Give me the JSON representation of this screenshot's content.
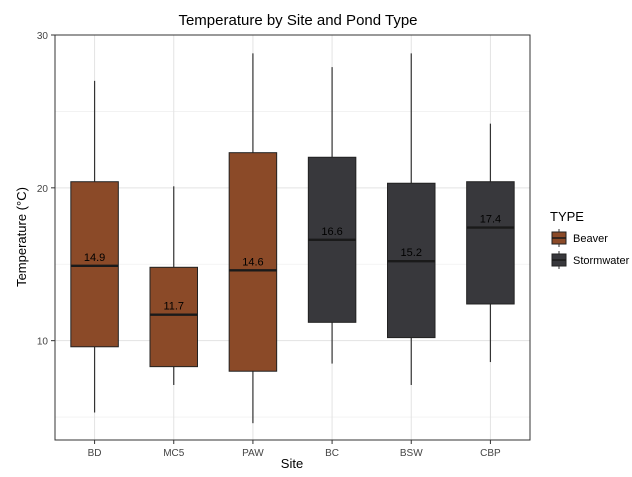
{
  "chart_data": {
    "type": "box",
    "title": "Temperature by Site and Pond Type",
    "xlabel": "Site",
    "ylabel": "Temperature (°C)",
    "ylim": [
      3.5,
      30
    ],
    "yticks": [
      10,
      20,
      30
    ],
    "grid": true,
    "legend": {
      "title": "TYPE",
      "position": "right",
      "entries": [
        {
          "name": "Beaver",
          "color": "#8b4a28"
        },
        {
          "name": "Stormwater",
          "color": "#38383c"
        }
      ]
    },
    "categories": [
      "BD",
      "MC5",
      "PAW",
      "BC",
      "BSW",
      "CBP"
    ],
    "boxes": [
      {
        "site": "BD",
        "type": "Beaver",
        "min": 5.3,
        "q1": 9.6,
        "median": 14.9,
        "q3": 20.4,
        "max": 27.0,
        "label": "14.9"
      },
      {
        "site": "MC5",
        "type": "Beaver",
        "min": 7.1,
        "q1": 8.3,
        "median": 11.7,
        "q3": 14.8,
        "max": 20.1,
        "label": "11.7"
      },
      {
        "site": "PAW",
        "type": "Beaver",
        "min": 4.6,
        "q1": 8.0,
        "median": 14.6,
        "q3": 22.3,
        "max": 28.8,
        "label": "14.6"
      },
      {
        "site": "BC",
        "type": "Stormwater",
        "min": 8.5,
        "q1": 11.2,
        "median": 16.6,
        "q3": 22.0,
        "max": 27.9,
        "label": "16.6"
      },
      {
        "site": "BSW",
        "type": "Stormwater",
        "min": 7.1,
        "q1": 10.2,
        "median": 15.2,
        "q3": 20.3,
        "max": 28.8,
        "label": "15.2"
      },
      {
        "site": "CBP",
        "type": "Stormwater",
        "min": 8.6,
        "q1": 12.4,
        "median": 17.4,
        "q3": 20.4,
        "max": 24.2,
        "label": "17.4"
      }
    ]
  }
}
